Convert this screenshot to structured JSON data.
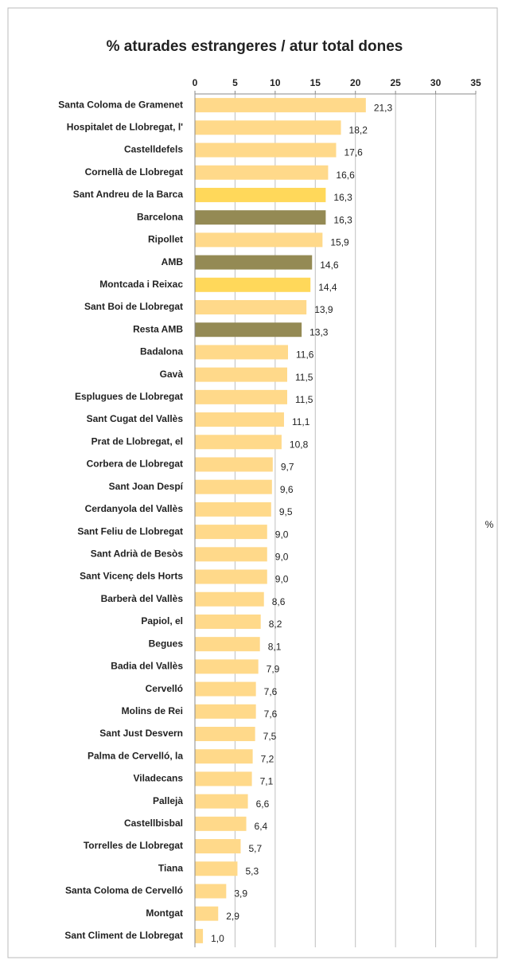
{
  "chart_data": {
    "type": "hbar",
    "title": "% aturades estrangeres / atur total dones",
    "y_axis_label": "%",
    "categories": [
      "Santa Coloma de Gramenet",
      "Hospitalet de Llobregat, l'",
      "Castelldefels",
      "Cornellà de Llobregat",
      "Sant Andreu de la Barca",
      "Barcelona",
      "Ripollet",
      "AMB",
      "Montcada i Reixac",
      "Sant Boi de Llobregat",
      "Resta AMB",
      "Badalona",
      "Gavà",
      "Esplugues de Llobregat",
      "Sant Cugat del Vallès",
      "Prat de Llobregat, el",
      "Corbera de Llobregat",
      "Sant Joan Despí",
      "Cerdanyola del Vallès",
      "Sant Feliu de Llobregat",
      "Sant Adrià de Besòs",
      "Sant Vicenç dels Horts",
      "Barberà del Vallès",
      "Papiol, el",
      "Begues",
      "Badia del Vallès",
      "Cervelló",
      "Molins de Rei",
      "Sant Just Desvern",
      "Palma de Cervelló, la",
      "Viladecans",
      "Pallejà",
      "Castellbisbal",
      "Torrelles de Llobregat",
      "Tiana",
      "Santa Coloma de Cervelló",
      "Montgat",
      "Sant Climent de Llobregat"
    ],
    "values": [
      21.3,
      18.2,
      17.6,
      16.6,
      16.3,
      16.3,
      15.9,
      14.6,
      14.4,
      13.9,
      13.3,
      11.6,
      11.5,
      11.5,
      11.1,
      10.8,
      9.7,
      9.6,
      9.5,
      9.0,
      9.0,
      9.0,
      8.6,
      8.2,
      8.1,
      7.9,
      7.6,
      7.6,
      7.5,
      7.2,
      7.1,
      6.6,
      6.4,
      5.7,
      5.3,
      3.9,
      2.9,
      1.0
    ],
    "value_labels": [
      "21,3",
      "18,2",
      "17,6",
      "16,6",
      "16,3",
      "16,3",
      "15,9",
      "14,6",
      "14,4",
      "13,9",
      "13,3",
      "11,6",
      "11,5",
      "11,5",
      "11,1",
      "10,8",
      "9,7",
      "9,6",
      "9,5",
      "9,0",
      "9,0",
      "9,0",
      "8,6",
      "8,2",
      "8,1",
      "7,9",
      "7,6",
      "7,6",
      "7,5",
      "7,2",
      "7,1",
      "6,6",
      "6,4",
      "5,7",
      "5,3",
      "3,9",
      "2,9",
      "1,0"
    ],
    "colors": [
      "#ffd98a",
      "#ffd98a",
      "#ffd98a",
      "#ffd98a",
      "#ffd85a",
      "#948a54",
      "#ffd98a",
      "#948a54",
      "#ffd85a",
      "#ffd98a",
      "#948a54",
      "#ffd98a",
      "#ffd98a",
      "#ffd98a",
      "#ffd98a",
      "#ffd98a",
      "#ffd98a",
      "#ffd98a",
      "#ffd98a",
      "#ffd98a",
      "#ffd98a",
      "#ffd98a",
      "#ffd98a",
      "#ffd98a",
      "#ffd98a",
      "#ffd98a",
      "#ffd98a",
      "#ffd98a",
      "#ffd98a",
      "#ffd98a",
      "#ffd98a",
      "#ffd98a",
      "#ffd98a",
      "#ffd98a",
      "#ffd98a",
      "#ffd98a",
      "#ffd98a",
      "#ffd98a"
    ],
    "xlim": [
      0,
      35
    ],
    "xticks": [
      0,
      5,
      10,
      15,
      20,
      25,
      30,
      35
    ],
    "grid": true
  }
}
